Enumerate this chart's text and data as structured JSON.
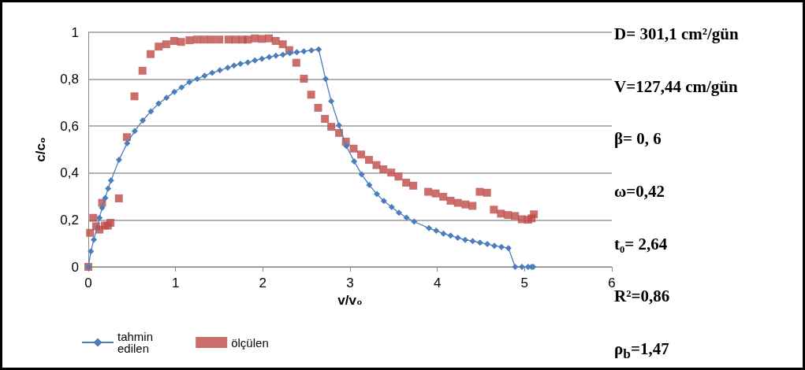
{
  "chart_data": {
    "type": "scatter",
    "xlabel": "v/v₀",
    "ylabel": "c/c₀",
    "xlim": [
      0,
      6
    ],
    "xticks": [
      0,
      1,
      2,
      3,
      4,
      5,
      6
    ],
    "ylim": [
      0,
      1
    ],
    "yticks": [
      0,
      {
        "value": 0.2,
        "label": "0,2"
      },
      {
        "value": 0.4,
        "label": "0,4"
      },
      {
        "value": 0.6,
        "label": "0,6"
      },
      {
        "value": 0.8,
        "label": "0,8"
      },
      1
    ],
    "grid": "y",
    "legend": "bottom left",
    "annotations": [
      "D= 301,1 cm²/gün",
      "V=127,44 cm/gün",
      "β=  0, 6",
      "ω=0,42",
      "t₀= 2,64",
      "R²=0,86",
      "ρ$_{b}$=1,47"
    ],
    "series": [
      {
        "name": "tahmin edilen",
        "type": "line",
        "marker": "diamond",
        "color": "#4a7ebb",
        "x": [
          0,
          0.03,
          0.063,
          0.128,
          0.158,
          0.194,
          0.227,
          0.26,
          0.352,
          0.445,
          0.532,
          0.624,
          0.717,
          0.806,
          0.896,
          0.986,
          1.069,
          1.159,
          1.248,
          1.332,
          1.419,
          1.508,
          1.598,
          1.67,
          1.744,
          1.828,
          1.909,
          1.99,
          2.073,
          2.15,
          2.23,
          2.31,
          2.39,
          2.47,
          2.557,
          2.64,
          2.72,
          2.784,
          2.874,
          2.957,
          3.047,
          3.133,
          3.22,
          3.307,
          3.387,
          3.477,
          3.56,
          3.647,
          3.734,
          3.904,
          3.987,
          4.07,
          4.152,
          4.235,
          4.32,
          4.405,
          4.49,
          4.573,
          4.654,
          4.735,
          4.815,
          4.892,
          4.97,
          5.04,
          5.08,
          5.1
        ],
        "values": [
          0,
          0.066,
          0.116,
          0.209,
          0.252,
          0.294,
          0.334,
          0.368,
          0.456,
          0.527,
          0.579,
          0.624,
          0.663,
          0.696,
          0.721,
          0.746,
          0.765,
          0.788,
          0.801,
          0.815,
          0.827,
          0.838,
          0.849,
          0.858,
          0.866,
          0.872,
          0.88,
          0.887,
          0.894,
          0.9,
          0.904,
          0.911,
          0.915,
          0.919,
          0.923,
          0.927,
          0.801,
          0.706,
          0.603,
          0.515,
          0.45,
          0.394,
          0.349,
          0.31,
          0.281,
          0.255,
          0.231,
          0.21,
          0.193,
          0.165,
          0.154,
          0.142,
          0.133,
          0.124,
          0.115,
          0.11,
          0.103,
          0.097,
          0.09,
          0.085,
          0.08,
          0,
          0,
          0,
          0,
          0
        ]
      },
      {
        "name": "ölçülen",
        "marker": "square",
        "color": "#be4b48",
        "x": [
          0,
          0.02,
          0.057,
          0.09,
          0.128,
          0.158,
          0.19,
          0.224,
          0.254,
          0.35,
          0.442,
          0.529,
          0.621,
          0.714,
          0.806,
          0.893,
          0.983,
          1.063,
          1.159,
          1.245,
          1.329,
          1.413,
          1.502,
          1.607,
          1.688,
          1.768,
          1.828,
          1.909,
          1.99,
          2.07,
          2.148,
          2.229,
          2.303,
          2.384,
          2.471,
          2.554,
          2.634,
          2.712,
          2.784,
          2.874,
          2.952,
          3.041,
          3.127,
          3.217,
          3.303,
          3.381,
          3.471,
          3.555,
          3.643,
          3.724,
          3.895,
          3.981,
          4.068,
          4.152,
          4.235,
          4.322,
          4.403,
          4.486,
          4.57,
          4.648,
          4.729,
          4.81,
          4.89,
          4.968,
          5.04,
          5.08,
          5.107
        ],
        "values": [
          0,
          0.145,
          0.209,
          0.173,
          0.159,
          0.273,
          0.176,
          0.176,
          0.188,
          0.292,
          0.553,
          0.727,
          0.836,
          0.907,
          0.939,
          0.949,
          0.963,
          0.959,
          0.966,
          0.969,
          0.969,
          0.969,
          0.969,
          0.969,
          0.969,
          0.969,
          0.969,
          0.974,
          0.972,
          0.974,
          0.963,
          0.949,
          0.924,
          0.87,
          0.802,
          0.734,
          0.678,
          0.631,
          0.597,
          0.571,
          0.534,
          0.504,
          0.479,
          0.456,
          0.434,
          0.416,
          0.402,
          0.385,
          0.359,
          0.346,
          0.32,
          0.313,
          0.299,
          0.282,
          0.273,
          0.266,
          0.26,
          0.32,
          0.316,
          0.244,
          0.227,
          0.221,
          0.217,
          0.203,
          0.201,
          0.207,
          0.224
        ]
      }
    ]
  }
}
